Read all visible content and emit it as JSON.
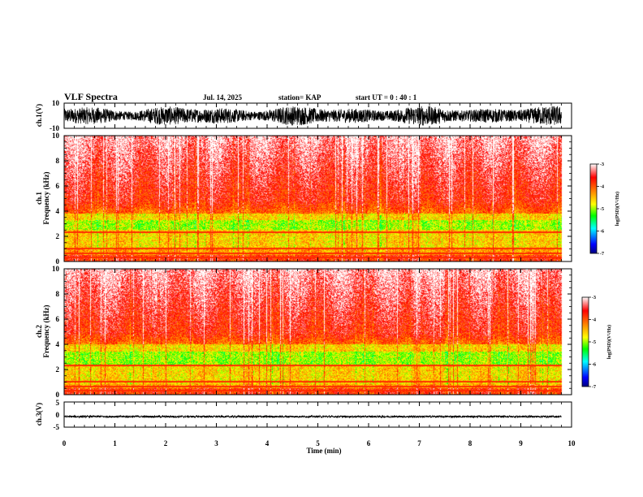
{
  "header": {
    "title": "VLF Spectra",
    "date": "Jul. 14, 2025",
    "station": "station= KAP",
    "start": "start  UT =   0 : 40 : 1"
  },
  "chart_data": [
    {
      "id": "ch1_waveform",
      "type": "line",
      "ylabel": "ch.1(V)",
      "ylim": [
        -10,
        10
      ],
      "yticks": [
        "10",
        "-10"
      ],
      "xlim": [
        0,
        10
      ],
      "data_extent_min": [
        0,
        9.8
      ],
      "description_values": {
        "amplitude_range_V": [
          -8,
          8
        ]
      }
    },
    {
      "id": "ch1_spectrogram",
      "type": "heatmap",
      "ylabel": "ch.1\nFrequency (kHz)",
      "ylabel_lines": [
        "ch.1",
        "Frequency (kHz)"
      ],
      "ylim": [
        0,
        10
      ],
      "yticks": [
        "0",
        "2",
        "4",
        "6",
        "8",
        "10"
      ],
      "xlim": [
        0,
        10
      ],
      "data_extent_min": [
        0,
        9.8
      ],
      "band_kHz": {
        "green_core": [
          2.5,
          3.3
        ],
        "yellow": [
          1.0,
          3.8
        ],
        "orange_red_top": 5.0
      },
      "colorbar": {
        "label": "log(PSD)(V²/Hz)",
        "range": [
          -7,
          -3
        ],
        "ticks": [
          "-3",
          "-4",
          "-5",
          "-6",
          "-7"
        ]
      }
    },
    {
      "id": "ch2_spectrogram",
      "type": "heatmap",
      "ylabel": "ch.2\nFrequency (kHz)",
      "ylabel_lines": [
        "ch.2",
        "Frequency (kHz)"
      ],
      "ylim": [
        0,
        10
      ],
      "yticks": [
        "0",
        "2",
        "4",
        "6",
        "8",
        "10"
      ],
      "xlim": [
        0,
        10
      ],
      "data_extent_min": [
        0,
        9.8
      ],
      "band_kHz": {
        "green_core": [
          2.3,
          3.4
        ],
        "yellow": [
          0.8,
          4.0
        ],
        "orange_red_top": 5.0
      },
      "colorbar": {
        "label": "log(PSD)(V²/Hz)",
        "range": [
          -7,
          -3
        ],
        "ticks": [
          "-3",
          "-4",
          "-5",
          "-6",
          "-7"
        ]
      }
    },
    {
      "id": "ch3_waveform",
      "type": "line",
      "ylabel": "ch.3(V)",
      "ylim": [
        -5,
        5
      ],
      "yticks": [
        "5",
        "0",
        "-5"
      ],
      "xlim": [
        0,
        10
      ],
      "data_extent_min": [
        0,
        9.8
      ],
      "description_values": {
        "level_V": -0.8,
        "ripple_V": 0.4
      }
    }
  ],
  "xaxis": {
    "label": "Time (min)",
    "ticks": [
      "0",
      "1",
      "2",
      "3",
      "4",
      "5",
      "6",
      "7",
      "8",
      "9",
      "10"
    ],
    "range": [
      0,
      10
    ]
  },
  "colors": {
    "background": "#ffffff",
    "axis": "#000000",
    "cmap": [
      "#000080",
      "#0000ff",
      "#00ffff",
      "#00ff00",
      "#ffff00",
      "#ff8000",
      "#ff0000",
      "#ffffff"
    ]
  }
}
